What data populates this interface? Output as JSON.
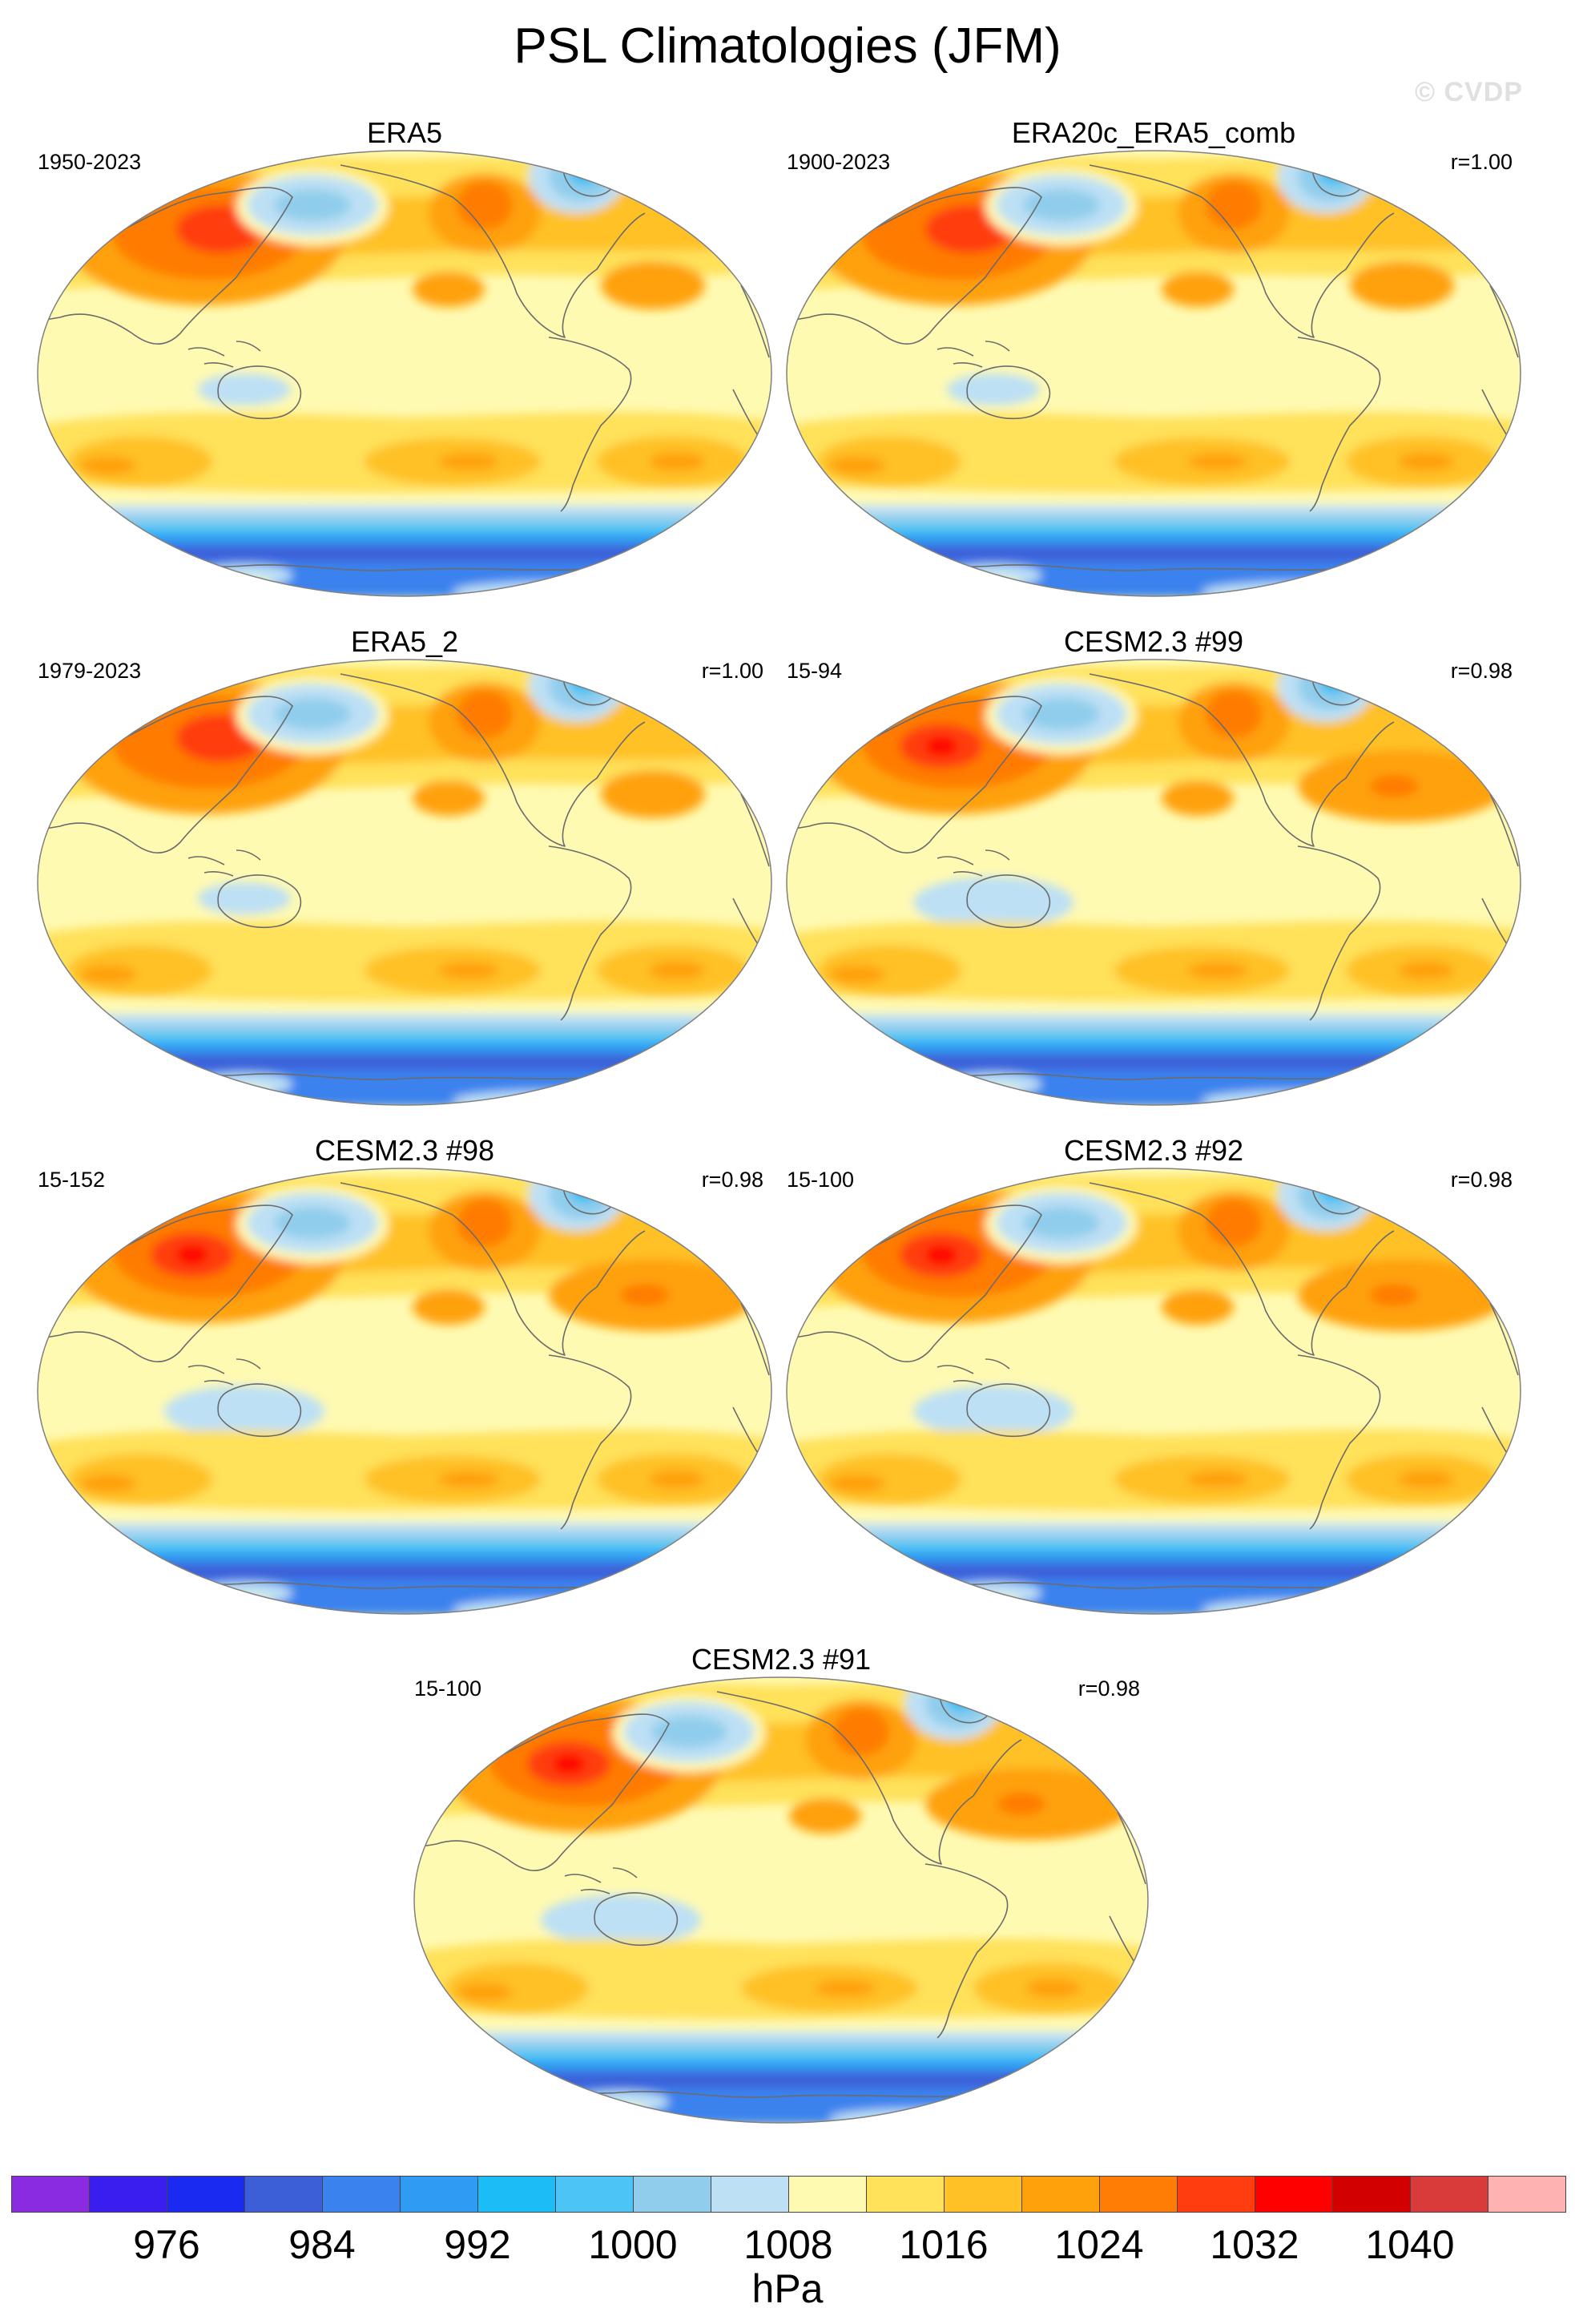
{
  "title": "PSL Climatologies (JFM)",
  "watermark": "© CVDP",
  "panels": [
    {
      "title": "ERA5",
      "period": "1950-2023",
      "corr": "",
      "variant": 0
    },
    {
      "title": "ERA20c_ERA5_comb",
      "period": "1900-2023",
      "corr": "r=1.00",
      "variant": 0
    },
    {
      "title": "ERA5_2",
      "period": "1979-2023",
      "corr": "r=1.00",
      "variant": 0
    },
    {
      "title": "CESM2.3 #99",
      "period": "15-94",
      "corr": "r=0.98",
      "variant": 1
    },
    {
      "title": "CESM2.3 #98",
      "period": "15-152",
      "corr": "r=0.98",
      "variant": 1
    },
    {
      "title": "CESM2.3 #92",
      "period": "15-100",
      "corr": "r=0.98",
      "variant": 1
    },
    {
      "title": "CESM2.3 #91",
      "period": "15-100",
      "corr": "r=0.98",
      "variant": 1
    }
  ],
  "colorbar": {
    "units": "hPa",
    "colors": [
      "#8a2be2",
      "#3a1ef0",
      "#1a2af0",
      "#3c5fd8",
      "#3a82ee",
      "#2f9bf2",
      "#1cbcf7",
      "#4cc4f5",
      "#90cdec",
      "#bde0f5",
      "#fffab2",
      "#ffe15a",
      "#ffc125",
      "#ffa10a",
      "#ff7c05",
      "#ff3d0f",
      "#ff0000",
      "#d20000",
      "#d93b3b",
      "#ffb2b2"
    ],
    "ticks": [
      "976",
      "984",
      "992",
      "1000",
      "1008",
      "1016",
      "1024",
      "1032",
      "1040"
    ]
  }
}
